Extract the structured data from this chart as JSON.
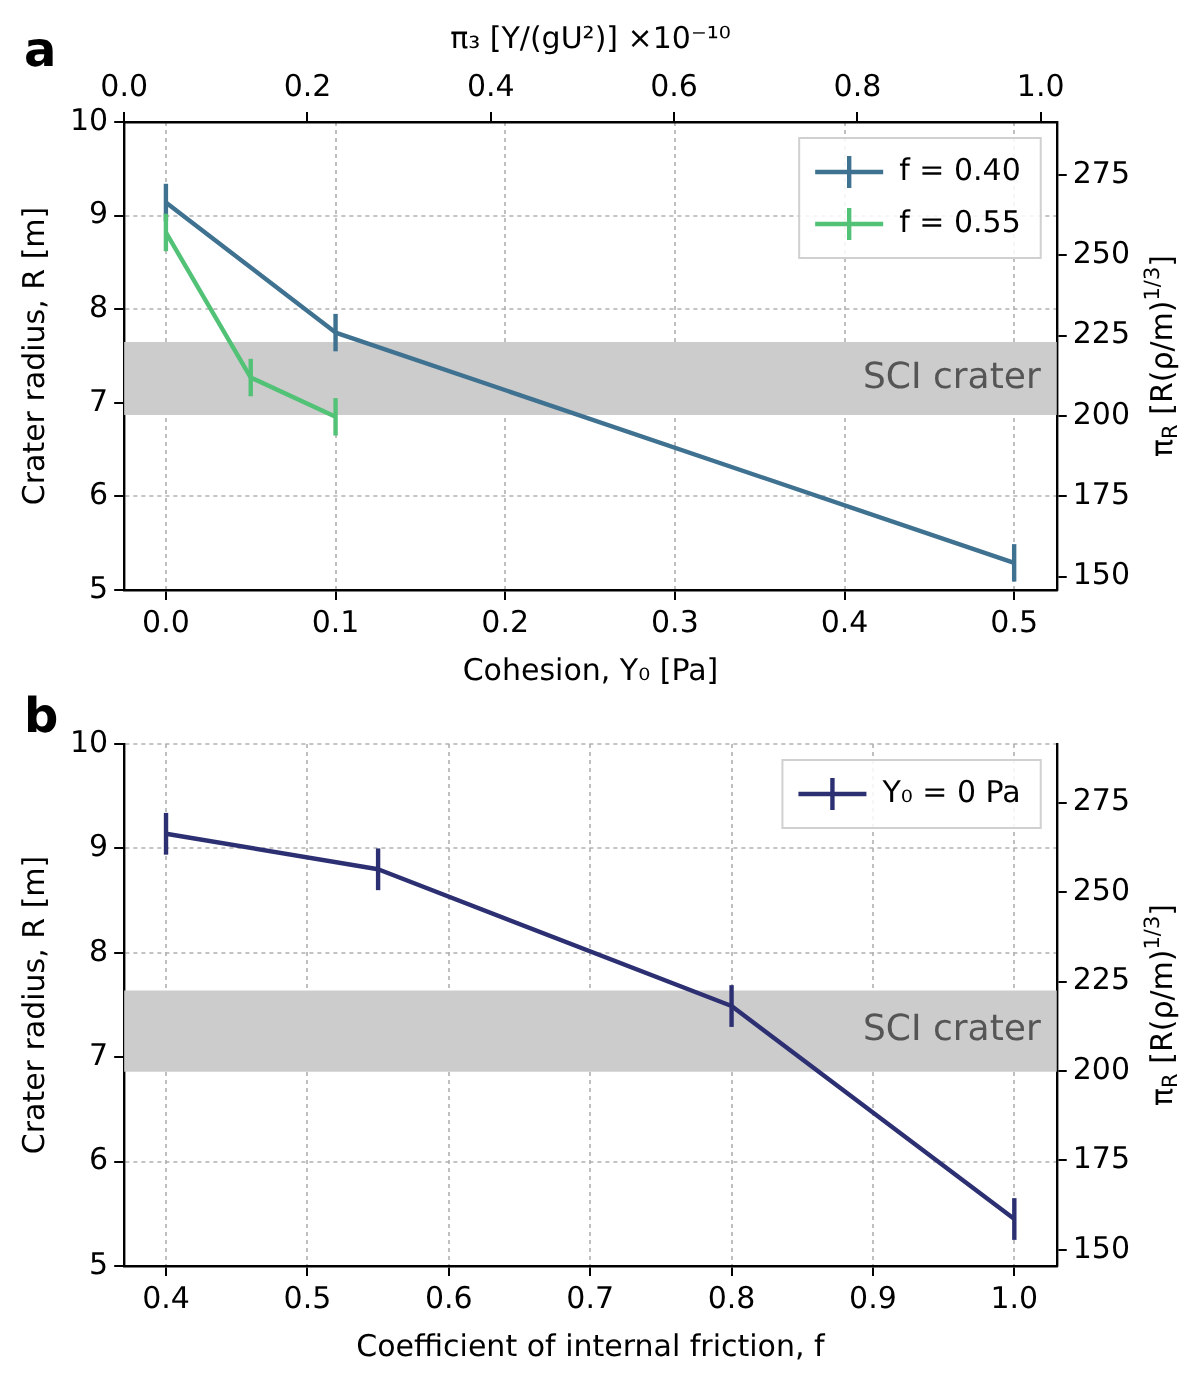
{
  "chart_data": [
    {
      "type": "line",
      "title": "a",
      "xlabel": "Cohesion, Y₀ [Pa]",
      "ylabel": "Crater radius, R [m]",
      "y2label": "π$_{R}$ [R(ρ/m)$^{1/3}$]",
      "x2label": "π₃ [Y/(gU²)] ×10⁻¹⁰",
      "xlim": [
        -0.0246,
        0.5251
      ],
      "xticks": [
        {
          "value": 0,
          "label": "0.0"
        },
        0.1,
        0.2,
        0.3,
        0.4,
        0.5
      ],
      "ylim": [
        5,
        10
      ],
      "yticks": [
        5,
        6,
        7,
        8,
        9,
        10
      ],
      "y2lim": [
        145.8,
        291.5
      ],
      "y2ticks": [
        150,
        175,
        200,
        225,
        250,
        275
      ],
      "x2lim": [
        0,
        1.0175
      ],
      "x2ticks": [
        {
          "value": 0,
          "label": "0.0"
        },
        0.2,
        0.4,
        0.6,
        0.8,
        {
          "value": 1,
          "label": "1.0"
        }
      ],
      "series": [
        {
          "name": "f = 0.40",
          "color": "#3f7190",
          "x": [
            0,
            0.1,
            0.5
          ],
          "values": [
            9.14,
            7.75,
            5.29
          ],
          "errors": [
            0.2,
            0.2,
            0.2
          ]
        },
        {
          "name": "f = 0.55",
          "color": "#52c277",
          "x": [
            0,
            0.05,
            0.1
          ],
          "values": [
            8.82,
            7.27,
            6.85
          ],
          "errors": [
            0.2,
            0.2,
            0.2
          ]
        }
      ],
      "bands": [
        {
          "axis": "y",
          "from": 6.87,
          "to": 7.65,
          "label": "SCI crater",
          "color": "#cccccc"
        }
      ],
      "grid": true,
      "legend": "top right",
      "marker": "none",
      "line_style": "solid"
    },
    {
      "type": "line",
      "title": "b",
      "xlabel": "Coefficient of internal friction, f",
      "ylabel": "Crater radius, R [m]",
      "y2label": "π$_{R}$ [R(ρ/m)$^{1/3}$]",
      "xlim": [
        0.3704,
        1.03
      ],
      "xticks": [
        0.4,
        0.5,
        0.6,
        0.7,
        0.8,
        0.9,
        {
          "value": 1,
          "label": "1.0"
        }
      ],
      "ylim": [
        5,
        10
      ],
      "yticks": [
        5,
        6,
        7,
        8,
        9,
        10
      ],
      "y2lim": [
        145.5,
        291.4
      ],
      "y2ticks": [
        150,
        175,
        200,
        225,
        250,
        275
      ],
      "series": [
        {
          "name": "Y₀ = 0 Pa",
          "color": "#2c3072",
          "x": [
            0.4,
            0.55,
            0.8,
            1.0
          ],
          "values": [
            9.14,
            8.8,
            7.49,
            5.45
          ],
          "errors": [
            0.2,
            0.2,
            0.2,
            0.2
          ]
        }
      ],
      "bands": [
        {
          "axis": "y",
          "from": 6.86,
          "to": 7.64,
          "label": "SCI crater",
          "color": "#cccccc"
        }
      ],
      "grid": true,
      "legend": "top right",
      "marker": "none",
      "line_style": "solid"
    }
  ]
}
